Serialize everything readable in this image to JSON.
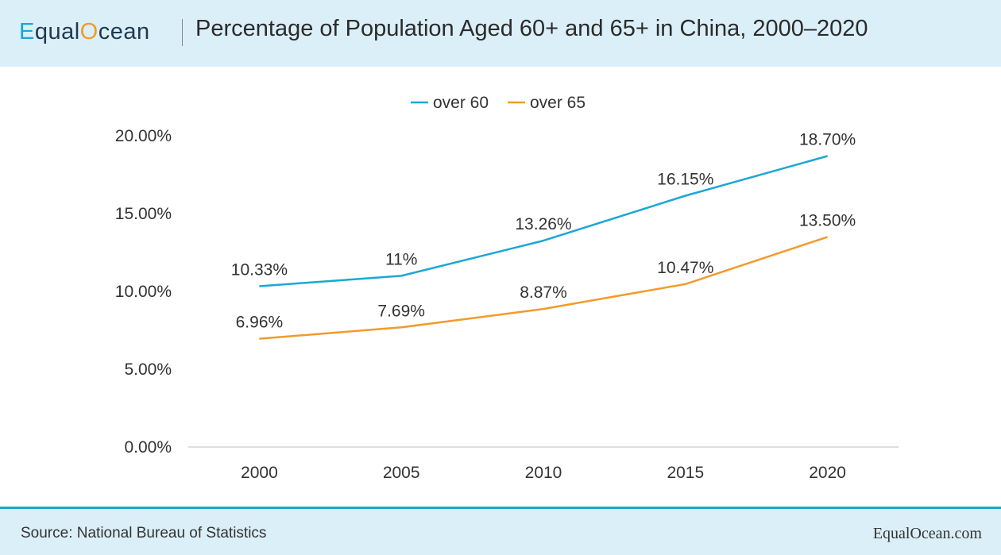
{
  "header": {
    "brand_e": "E",
    "brand_mid": "qual",
    "brand_o": "O",
    "brand_end": "cean",
    "title": "Percentage of Population Aged 60+ and 65+ in China, 2000–2020"
  },
  "footer": {
    "source": "Source: National Bureau of Statistics",
    "site": "EqualOcean.com"
  },
  "colors": {
    "over60": "#1ba7d5",
    "over65": "#f39a2b",
    "header_bg": "#dbeff8",
    "brand_dark": "#1e3a52"
  },
  "chart_data": {
    "type": "line",
    "title": "Percentage of Population Aged 60+ and 65+ in China, 2000–2020",
    "categories": [
      "2000",
      "2005",
      "2010",
      "2015",
      "2020"
    ],
    "series": [
      {
        "name": "over 60",
        "values": [
          10.33,
          11,
          13.26,
          16.15,
          18.7
        ],
        "labels": [
          "10.33%",
          "11%",
          "13.26%",
          "16.15%",
          "18.70%"
        ]
      },
      {
        "name": "over 65",
        "values": [
          6.96,
          7.69,
          8.87,
          10.47,
          13.5
        ],
        "labels": [
          "6.96%",
          "7.69%",
          "8.87%",
          "10.47%",
          "13.50%"
        ]
      }
    ],
    "yticks": [
      "0.00%",
      "5.00%",
      "10.00%",
      "15.00%",
      "20.00%"
    ],
    "ylim": [
      0,
      20
    ],
    "legend_position": "top-center",
    "grid": false
  }
}
